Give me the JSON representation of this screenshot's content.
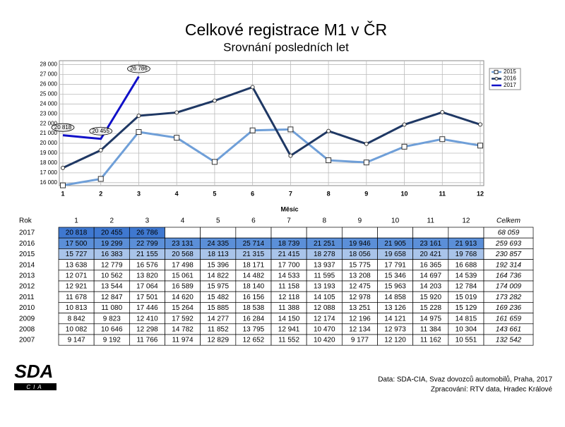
{
  "chart_data": {
    "type": "line",
    "title": "Celkové registrace M1 v ČR",
    "subtitle": "Srovnání posledních let",
    "x_label": "Měsíc",
    "categories": [
      "1",
      "2",
      "3",
      "4",
      "5",
      "6",
      "7",
      "8",
      "9",
      "10",
      "11",
      "12"
    ],
    "series": [
      {
        "name": "2015",
        "color": "#6f9fd8",
        "marker": "square",
        "values": [
          15727,
          16383,
          21155,
          20568,
          18113,
          21315,
          21415,
          18278,
          18056,
          19658,
          20421,
          19768
        ]
      },
      {
        "name": "2016",
        "color": "#1f3864",
        "marker": "circle",
        "values": [
          17500,
          19299,
          22799,
          23131,
          24335,
          25714,
          18739,
          21251,
          19946,
          21905,
          23161,
          21913
        ]
      },
      {
        "name": "2017",
        "color": "#1010c8",
        "marker": "none",
        "values": [
          20818,
          20455,
          26786,
          null,
          null,
          null,
          null,
          null,
          null,
          null,
          null,
          null
        ],
        "value_labels": [
          "20 818",
          "20 455",
          "26 786",
          null,
          null,
          null,
          null,
          null,
          null,
          null,
          null,
          null
        ]
      }
    ],
    "ylim": [
      15700,
      28400
    ],
    "yticks": [
      {
        "value": 16000,
        "label": "16 000"
      },
      {
        "value": 17000,
        "label": "17 000"
      },
      {
        "value": 18000,
        "label": "18 000"
      },
      {
        "value": 19000,
        "label": "19 000"
      },
      {
        "value": 20000,
        "label": "20 000"
      },
      {
        "value": 21000,
        "label": "21 000"
      },
      {
        "value": 22000,
        "label": "22 000"
      },
      {
        "value": 23000,
        "label": "23 000"
      },
      {
        "value": 24000,
        "label": "24 000"
      },
      {
        "value": 25000,
        "label": "25 000"
      },
      {
        "value": 26000,
        "label": "26 000"
      },
      {
        "value": 27000,
        "label": "27 000"
      },
      {
        "value": 28000,
        "label": "28 000"
      }
    ],
    "grid": true,
    "legend": "upper right"
  },
  "table": {
    "header": [
      "Rok",
      "1",
      "2",
      "3",
      "4",
      "5",
      "6",
      "7",
      "8",
      "9",
      "10",
      "11",
      "12",
      "Celkem"
    ],
    "rows": [
      [
        "2017",
        "20 818",
        "20 455",
        "26 786",
        null,
        null,
        null,
        null,
        null,
        null,
        null,
        null,
        null,
        "68 059"
      ],
      [
        "2016",
        "17 500",
        "19 299",
        "22 799",
        "23 131",
        "24 335",
        "25 714",
        "18 739",
        "21 251",
        "19 946",
        "21 905",
        "23 161",
        "21 913",
        "259 693"
      ],
      [
        "2015",
        "15 727",
        "16 383",
        "21 155",
        "20 568",
        "18 113",
        "21 315",
        "21 415",
        "18 278",
        "18 056",
        "19 658",
        "20 421",
        "19 768",
        "230 857"
      ],
      [
        "2014",
        "13 638",
        "12 779",
        "16 576",
        "17 498",
        "15 396",
        "18 171",
        "17 700",
        "13 937",
        "15 775",
        "17 791",
        "16 365",
        "16 688",
        "192 314"
      ],
      [
        "2013",
        "12 071",
        "10 562",
        "13 820",
        "15 061",
        "14 822",
        "14 482",
        "14 533",
        "11 595",
        "13 208",
        "15 346",
        "14 697",
        "14 539",
        "164 736"
      ],
      [
        "2012",
        "12 921",
        "13 544",
        "17 064",
        "16 589",
        "15 975",
        "18 140",
        "11 158",
        "13 193",
        "12 475",
        "15 963",
        "14 203",
        "12 784",
        "174 009"
      ],
      [
        "2011",
        "11 678",
        "12 847",
        "17 501",
        "14 620",
        "15 482",
        "16 156",
        "12 118",
        "14 105",
        "12 978",
        "14 858",
        "15 920",
        "15 019",
        "173 282"
      ],
      [
        "2010",
        "10 813",
        "11 080",
        "17 446",
        "15 264",
        "15 885",
        "18 538",
        "11 388",
        "12 088",
        "13 251",
        "13 126",
        "15 228",
        "15 129",
        "169 236"
      ],
      [
        "2009",
        "8 842",
        "9 823",
        "12 410",
        "17 592",
        "14 277",
        "16 284",
        "14 150",
        "12 174",
        "12 196",
        "14 121",
        "14 975",
        "14 815",
        "161 659"
      ],
      [
        "2008",
        "10 082",
        "10 646",
        "12 298",
        "14 782",
        "11 852",
        "13 795",
        "12 941",
        "10 470",
        "12 134",
        "12 973",
        "11 384",
        "10 304",
        "143 661"
      ],
      [
        "2007",
        "9 147",
        "9 192",
        "11 766",
        "11 974",
        "12 829",
        "12 652",
        "11 552",
        "10 420",
        "9 177",
        "12 120",
        "11 162",
        "10 551",
        "132 542"
      ]
    ]
  },
  "footer": {
    "logo": "SDA",
    "logo_sub": "CIA",
    "source": "Data: SDA-CIA, Svaz dovozců automobilů, Praha, 2017",
    "processed": "Zpracování: RTV data, Hradec Králové"
  }
}
